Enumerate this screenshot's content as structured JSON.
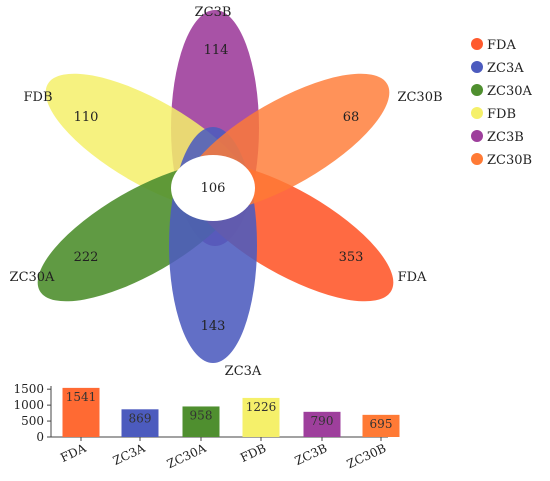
{
  "chart_data": [
    {
      "type": "venn",
      "sets": [
        {
          "name": "FDA",
          "unique": 353,
          "color": "#FF5A2E"
        },
        {
          "name": "ZC3A",
          "unique": 143,
          "color": "#4C5BBE"
        },
        {
          "name": "ZC30A",
          "unique": 222,
          "color": "#4F8F2F"
        },
        {
          "name": "FDB",
          "unique": 110,
          "color": "#F5F06A"
        },
        {
          "name": "ZC3B",
          "unique": 114,
          "color": "#9E3F9C"
        },
        {
          "name": "ZC30B",
          "unique": 68,
          "color": "#FF7A35"
        }
      ],
      "core": 106,
      "legend_position": "top-right"
    },
    {
      "type": "bar",
      "categories": [
        "FDA",
        "ZC3A",
        "ZC30A",
        "FDB",
        "ZC3B",
        "ZC30B"
      ],
      "values": [
        1541,
        869,
        958,
        1226,
        790,
        695
      ],
      "colors": [
        "#FF6A33",
        "#4C5BBE",
        "#4F8F2F",
        "#F5F06A",
        "#9E3F9C",
        "#FF7A35"
      ],
      "yticks": [
        "1500",
        "1000",
        "500",
        "0"
      ],
      "ylim": [
        0,
        1600
      ]
    }
  ]
}
